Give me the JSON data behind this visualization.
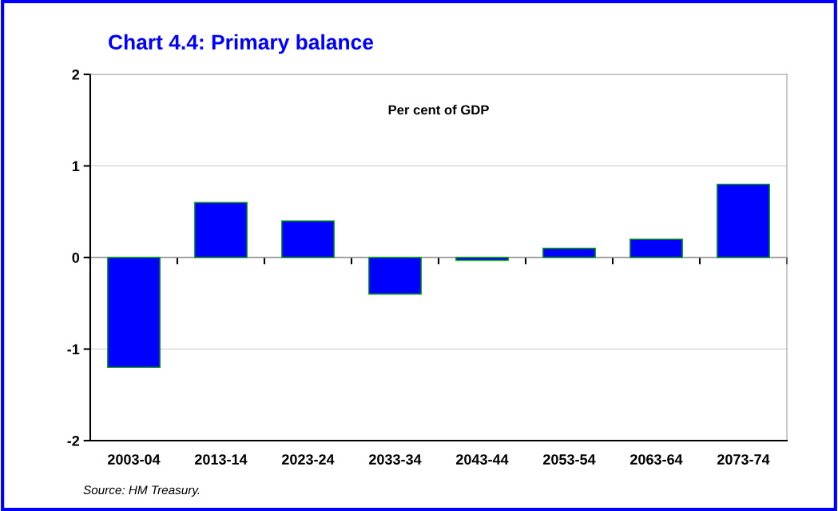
{
  "chart_data": {
    "type": "bar",
    "title": "Chart 4.4: Primary balance",
    "ylabel": "Per cent of GDP",
    "categories": [
      "2003-04",
      "2013-14",
      "2023-24",
      "2033-34",
      "2043-44",
      "2053-54",
      "2063-64",
      "2073-74"
    ],
    "values": [
      -1.2,
      0.6,
      0.4,
      -0.4,
      -0.03,
      0.1,
      0.2,
      0.8
    ],
    "color": "#0000ff",
    "ylim": [
      -2,
      2
    ],
    "yticks": [
      -2,
      -1,
      0,
      1,
      2
    ],
    "grid": "y",
    "legend": false,
    "annotations": [
      "Source: HM Treasury."
    ]
  }
}
